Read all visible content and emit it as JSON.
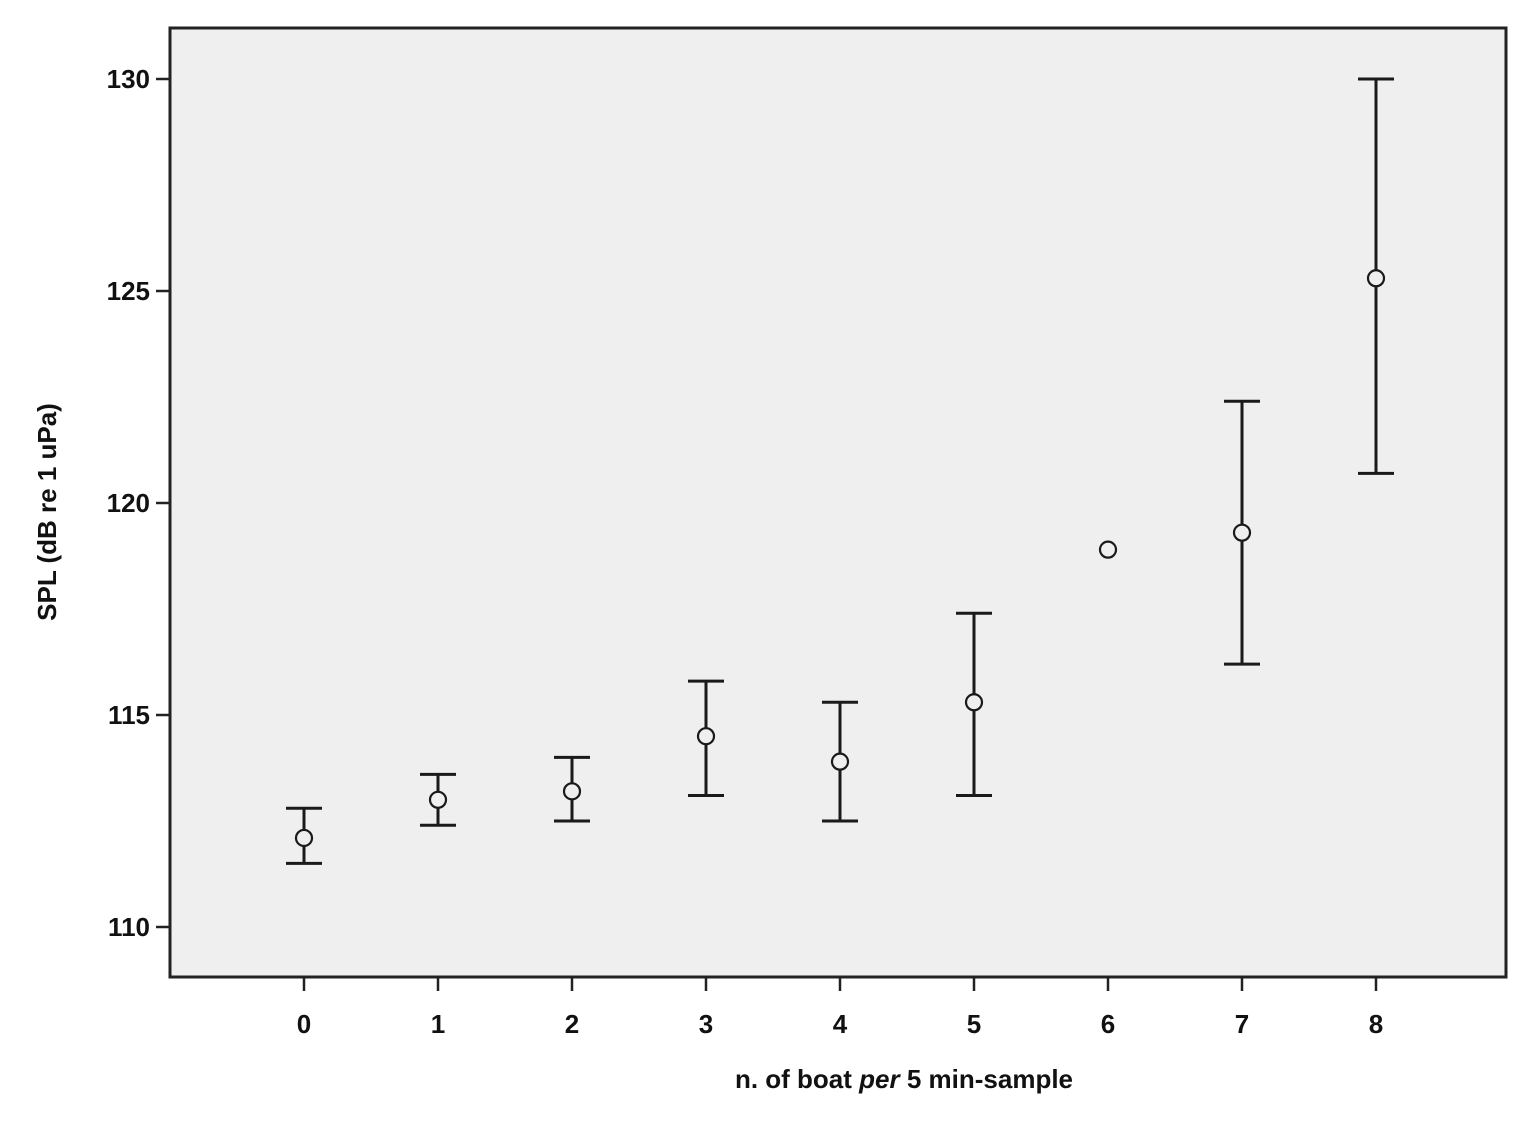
{
  "chart_data": {
    "type": "scatter",
    "title": "",
    "xlabel": "n. of boat per 5 min-sample",
    "xlabel_parts": [
      {
        "text": "n. of boat ",
        "italic": false
      },
      {
        "text": "per",
        "italic": true
      },
      {
        "text": " 5 min-sample",
        "italic": false
      }
    ],
    "ylabel": "SPL (dB re 1 uPa)",
    "categories": [
      "0",
      "1",
      "2",
      "3",
      "4",
      "5",
      "6",
      "7",
      "8"
    ],
    "y_ticks": [
      "110",
      "115",
      "120",
      "125",
      "130"
    ],
    "ylim": [
      108.8,
      131.2
    ],
    "grid": false,
    "legend": "none",
    "series": [
      {
        "mean": [
          112.1,
          113.0,
          113.2,
          114.5,
          113.9,
          115.3,
          118.9,
          119.3,
          125.3
        ],
        "lower": [
          111.5,
          112.4,
          112.5,
          113.1,
          112.5,
          113.1,
          null,
          116.2,
          120.7
        ],
        "upper": [
          112.8,
          113.6,
          114.0,
          115.8,
          115.3,
          117.4,
          null,
          122.4,
          130.0
        ]
      }
    ],
    "colors": {
      "plot_background": "#efefef",
      "marks": "#1a1a1a"
    }
  }
}
